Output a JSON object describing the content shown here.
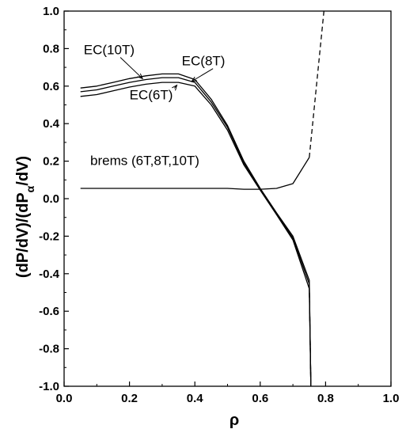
{
  "chart_data": {
    "type": "line",
    "title": "",
    "xlabel": "ρ",
    "ylabel_main": "(dP/dV)/(dP",
    "ylabel_sub": "α",
    "ylabel_end": "/dV)",
    "xlim": [
      0.0,
      1.0
    ],
    "ylim": [
      -1.0,
      1.0
    ],
    "xticks": [
      "0.0",
      "0.2",
      "0.4",
      "0.6",
      "0.8",
      "1.0"
    ],
    "yticks": [
      "-1.0",
      "-0.8",
      "-0.6",
      "-0.4",
      "-0.2",
      "0.0",
      "0.2",
      "0.4",
      "0.6",
      "0.8",
      "1.0"
    ],
    "grid": false,
    "series": [
      {
        "name": "EC(10T)",
        "style": "solid",
        "x": [
          0.05,
          0.1,
          0.15,
          0.2,
          0.25,
          0.3,
          0.35,
          0.4,
          0.45,
          0.5,
          0.55,
          0.6,
          0.65,
          0.7,
          0.75,
          0.755
        ],
        "y": [
          0.59,
          0.6,
          0.62,
          0.64,
          0.655,
          0.665,
          0.665,
          0.635,
          0.53,
          0.39,
          0.2,
          0.055,
          -0.075,
          -0.2,
          -0.435,
          -1.0
        ]
      },
      {
        "name": "EC(8T)",
        "style": "solid",
        "x": [
          0.05,
          0.1,
          0.15,
          0.2,
          0.25,
          0.3,
          0.35,
          0.4,
          0.45,
          0.5,
          0.55,
          0.6,
          0.65,
          0.7,
          0.75,
          0.755
        ],
        "y": [
          0.57,
          0.58,
          0.6,
          0.62,
          0.635,
          0.645,
          0.645,
          0.62,
          0.515,
          0.38,
          0.19,
          0.05,
          -0.08,
          -0.21,
          -0.455,
          -1.0
        ]
      },
      {
        "name": "EC(6T)",
        "style": "solid",
        "x": [
          0.05,
          0.1,
          0.15,
          0.2,
          0.25,
          0.3,
          0.35,
          0.4,
          0.45,
          0.5,
          0.55,
          0.6,
          0.65,
          0.7,
          0.75,
          0.755
        ],
        "y": [
          0.545,
          0.555,
          0.575,
          0.595,
          0.61,
          0.62,
          0.62,
          0.6,
          0.5,
          0.365,
          0.18,
          0.045,
          -0.085,
          -0.22,
          -0.48,
          -1.0
        ]
      },
      {
        "name": "brems (6T,8T,10T)",
        "style": "solid",
        "x": [
          0.05,
          0.1,
          0.2,
          0.3,
          0.4,
          0.5,
          0.55,
          0.6,
          0.65,
          0.7,
          0.75
        ],
        "y": [
          0.055,
          0.055,
          0.055,
          0.055,
          0.055,
          0.055,
          0.05,
          0.05,
          0.055,
          0.08,
          0.22
        ]
      },
      {
        "name": "brems-dashed",
        "style": "dashed",
        "x": [
          0.75,
          0.795
        ],
        "y": [
          0.22,
          1.0
        ]
      },
      {
        "name": "ec-dashed",
        "style": "dashed",
        "x": [
          0.75,
          0.755
        ],
        "y": [
          -0.46,
          -1.0
        ]
      }
    ],
    "annotations": [
      {
        "text": "EC(10T)",
        "x": 0.06,
        "y": 0.77,
        "arrow_to": [
          0.24,
          0.64
        ]
      },
      {
        "text": "EC(8T)",
        "x": 0.36,
        "y": 0.71,
        "arrow_to": [
          0.39,
          0.625
        ]
      },
      {
        "text": "EC(6T)",
        "x": 0.2,
        "y": 0.53,
        "arrow_to": [
          0.345,
          0.605
        ]
      },
      {
        "text": "brems (6T,8T,10T)",
        "x": 0.08,
        "y": 0.18,
        "arrow_to": null
      }
    ]
  }
}
